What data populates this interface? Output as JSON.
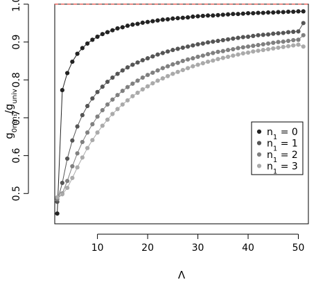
{
  "chart_data": {
    "type": "scatter",
    "title": "",
    "xlabel": "Λ",
    "ylabel": {
      "main": "g",
      "sub": "0n₁n₁",
      "suffix": "/g",
      "sub2": "univ"
    },
    "xlim": [
      1.5,
      52
    ],
    "ylim": [
      0.42,
      1.0
    ],
    "x_ticks": [
      10,
      20,
      30,
      40,
      50
    ],
    "y_ticks": [
      0.5,
      0.6,
      0.7,
      0.8,
      0.9,
      1.0
    ],
    "x_tick_labels": [
      "10",
      "20",
      "30",
      "40",
      "50"
    ],
    "y_tick_labels": [
      "0.5",
      "0.6",
      "0.7",
      "0.8",
      "0.9",
      "1.0"
    ],
    "reference_line": {
      "y": 1.0,
      "color": "#e8443a",
      "style": "dashed"
    },
    "legend": {
      "position": "right-middle",
      "entries": [
        {
          "prefix": "n",
          "sub": "1",
          "suffix": " = 0"
        },
        {
          "prefix": "n",
          "sub": "1",
          "suffix": " = 1"
        },
        {
          "prefix": "n",
          "sub": "1",
          "suffix": " = 2"
        },
        {
          "prefix": "n",
          "sub": "1",
          "suffix": " = 3"
        }
      ]
    },
    "x": [
      2,
      3,
      4,
      5,
      6,
      7,
      8,
      9,
      10,
      11,
      12,
      13,
      14,
      15,
      16,
      17,
      18,
      19,
      20,
      21,
      22,
      23,
      24,
      25,
      26,
      27,
      28,
      29,
      30,
      31,
      32,
      33,
      34,
      35,
      36,
      37,
      38,
      39,
      40,
      41,
      42,
      43,
      44,
      45,
      46,
      47,
      48,
      49,
      50,
      51
    ],
    "series": [
      {
        "color": "#222222",
        "values": [
          0.447,
          0.773,
          0.818,
          0.848,
          0.869,
          0.884,
          0.896,
          0.906,
          0.914,
          0.921,
          0.926,
          0.931,
          0.936,
          0.939,
          0.943,
          0.946,
          0.948,
          0.951,
          0.953,
          0.955,
          0.957,
          0.959,
          0.96,
          0.962,
          0.963,
          0.964,
          0.965,
          0.967,
          0.968,
          0.969,
          0.97,
          0.97,
          0.971,
          0.972,
          0.973,
          0.974,
          0.974,
          0.975,
          0.976,
          0.976,
          0.977,
          0.977,
          0.978,
          0.978,
          0.979,
          0.979,
          0.98,
          0.98,
          0.981,
          0.981
        ]
      },
      {
        "color": "#555555",
        "values": [
          0.478,
          0.528,
          0.592,
          0.64,
          0.677,
          0.707,
          0.731,
          0.751,
          0.768,
          0.782,
          0.795,
          0.806,
          0.816,
          0.825,
          0.833,
          0.84,
          0.846,
          0.852,
          0.857,
          0.862,
          0.867,
          0.871,
          0.875,
          0.879,
          0.882,
          0.885,
          0.888,
          0.891,
          0.894,
          0.896,
          0.899,
          0.901,
          0.903,
          0.905,
          0.907,
          0.909,
          0.911,
          0.913,
          0.914,
          0.916,
          0.918,
          0.919,
          0.92,
          0.922,
          0.923,
          0.924,
          0.926,
          0.927,
          0.928,
          0.95
        ]
      },
      {
        "color": "#808080",
        "values": [
          0.485,
          0.5,
          0.533,
          0.572,
          0.606,
          0.636,
          0.661,
          0.683,
          0.703,
          0.72,
          0.735,
          0.748,
          0.76,
          0.771,
          0.781,
          0.79,
          0.798,
          0.806,
          0.813,
          0.819,
          0.825,
          0.831,
          0.836,
          0.841,
          0.845,
          0.85,
          0.854,
          0.857,
          0.861,
          0.864,
          0.868,
          0.871,
          0.874,
          0.876,
          0.879,
          0.881,
          0.884,
          0.886,
          0.888,
          0.89,
          0.892,
          0.894,
          0.896,
          0.898,
          0.9,
          0.901,
          0.903,
          0.905,
          0.906,
          0.918
        ]
      },
      {
        "color": "#aaaaaa",
        "values": [
          0.49,
          0.498,
          0.515,
          0.541,
          0.569,
          0.595,
          0.62,
          0.641,
          0.661,
          0.679,
          0.695,
          0.71,
          0.723,
          0.735,
          0.746,
          0.757,
          0.766,
          0.775,
          0.783,
          0.791,
          0.798,
          0.804,
          0.81,
          0.816,
          0.821,
          0.826,
          0.831,
          0.836,
          0.84,
          0.844,
          0.848,
          0.851,
          0.855,
          0.858,
          0.861,
          0.864,
          0.867,
          0.87,
          0.872,
          0.875,
          0.877,
          0.879,
          0.881,
          0.883,
          0.885,
          0.887,
          0.889,
          0.891,
          0.893,
          0.888
        ]
      }
    ]
  }
}
